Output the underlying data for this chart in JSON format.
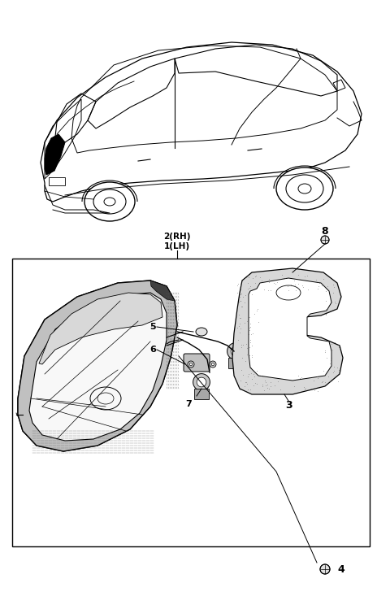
{
  "background_color": "#ffffff",
  "fig_width": 4.8,
  "fig_height": 7.33,
  "dpi": 100,
  "label_2rh": "2(RH)",
  "label_1lh": "1(LH)",
  "label_3": "3",
  "label_4": "4",
  "label_5": "5",
  "label_6": "6",
  "label_7": "7",
  "label_8": "8",
  "line_color": "#000000"
}
